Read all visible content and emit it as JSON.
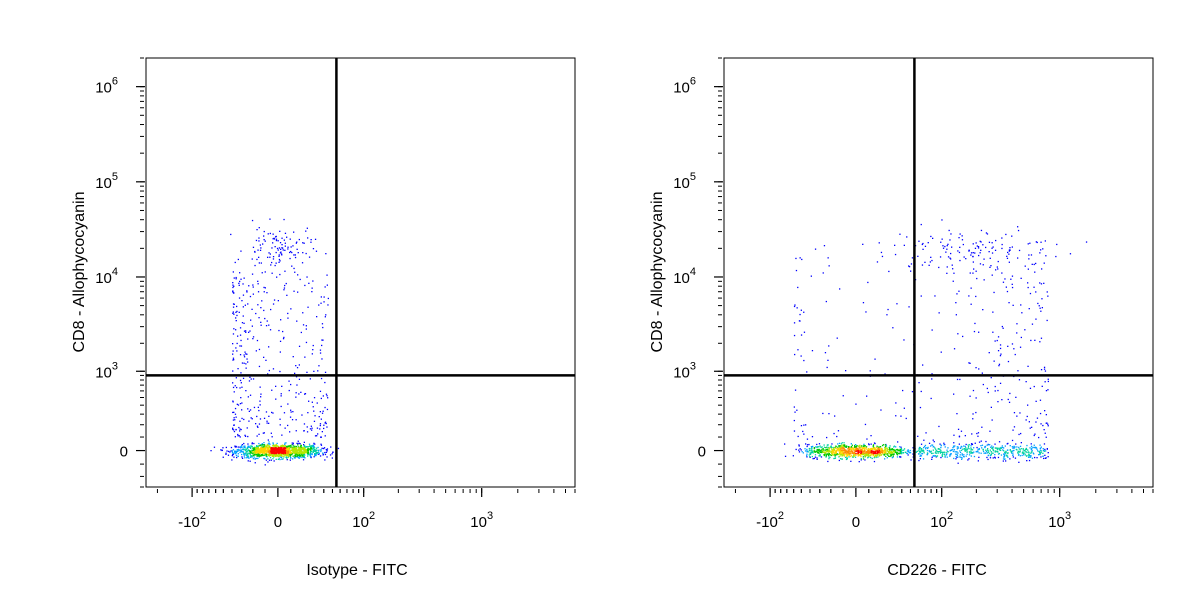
{
  "colors": {
    "axis": "#000000",
    "gate": "#000000",
    "density_low": "#0000ff",
    "density_mid": "#00c800",
    "density_high": "#ff0000"
  },
  "chart_data": [
    {
      "type": "scatter",
      "subtype": "flow-cytometry-pseudocolor-dot-plot",
      "title": "",
      "xlabel": "Isotype - FITC",
      "ylabel": "CD8 - Allophycocyanin",
      "x_scale": "biexponential",
      "y_scale": "biexponential",
      "xlim": [
        -250,
        6000
      ],
      "ylim": [
        -300,
        2000000
      ],
      "x_ticks": [
        {
          "value": -100,
          "label": "-10",
          "exp": "2"
        },
        {
          "value": 0,
          "label": "0",
          "exp": ""
        },
        {
          "value": 100,
          "label": "10",
          "exp": "2"
        },
        {
          "value": 1000,
          "label": "10",
          "exp": "3"
        }
      ],
      "y_ticks": [
        {
          "value": 0,
          "label": "0",
          "exp": ""
        },
        {
          "value": 1000,
          "label": "10",
          "exp": "3"
        },
        {
          "value": 10000,
          "label": "10",
          "exp": "4"
        },
        {
          "value": 100000,
          "label": "10",
          "exp": "5"
        },
        {
          "value": 1000000,
          "label": "10",
          "exp": "6"
        }
      ],
      "gates": {
        "x": 55,
        "y": 900
      },
      "populations": [
        {
          "x": 0,
          "y": 0,
          "count": 1300,
          "sx": 18,
          "sy": 25,
          "dist": "normal"
        },
        {
          "x": 0,
          "y": 20000,
          "count": 120,
          "sx": 14,
          "sy": 0.12,
          "dist": "lognormal"
        },
        {
          "x_range": [
            -40,
            45
          ],
          "y_range": [
            100,
            12000
          ],
          "count": 380,
          "dist": "uniform-log"
        }
      ],
      "gridlines": false,
      "legend": "none"
    },
    {
      "type": "scatter",
      "subtype": "flow-cytometry-pseudocolor-dot-plot",
      "title": "",
      "xlabel": "CD226 - FITC",
      "ylabel": "CD8 - Allophycocyanin",
      "x_scale": "biexponential",
      "y_scale": "biexponential",
      "xlim": [
        -250,
        6000
      ],
      "ylim": [
        -300,
        2000000
      ],
      "x_ticks": [
        {
          "value": -100,
          "label": "-10",
          "exp": "2"
        },
        {
          "value": 0,
          "label": "0",
          "exp": ""
        },
        {
          "value": 100,
          "label": "10",
          "exp": "2"
        },
        {
          "value": 1000,
          "label": "10",
          "exp": "3"
        }
      ],
      "y_ticks": [
        {
          "value": 0,
          "label": "0",
          "exp": ""
        },
        {
          "value": 1000,
          "label": "10",
          "exp": "3"
        },
        {
          "value": 10000,
          "label": "10",
          "exp": "4"
        },
        {
          "value": 100000,
          "label": "10",
          "exp": "5"
        },
        {
          "value": 1000000,
          "label": "10",
          "exp": "6"
        }
      ],
      "gates": {
        "x": 55,
        "y": 900
      },
      "populations": [
        {
          "x": 0,
          "y": 0,
          "count": 950,
          "sx": 22,
          "sy": 25,
          "dist": "normal"
        },
        {
          "x_range": [
            60,
            800
          ],
          "y": 0,
          "count": 480,
          "sy": 30,
          "dist": "uniform-log-x"
        },
        {
          "x": 150,
          "y": 20000,
          "count": 120,
          "sx": 0.35,
          "sy": 0.12,
          "dist": "lognormal"
        },
        {
          "x_range": [
            -60,
            800
          ],
          "y_range": [
            100,
            25000
          ],
          "count": 320,
          "dist": "uniform-log"
        }
      ],
      "gridlines": false,
      "legend": "none"
    }
  ]
}
